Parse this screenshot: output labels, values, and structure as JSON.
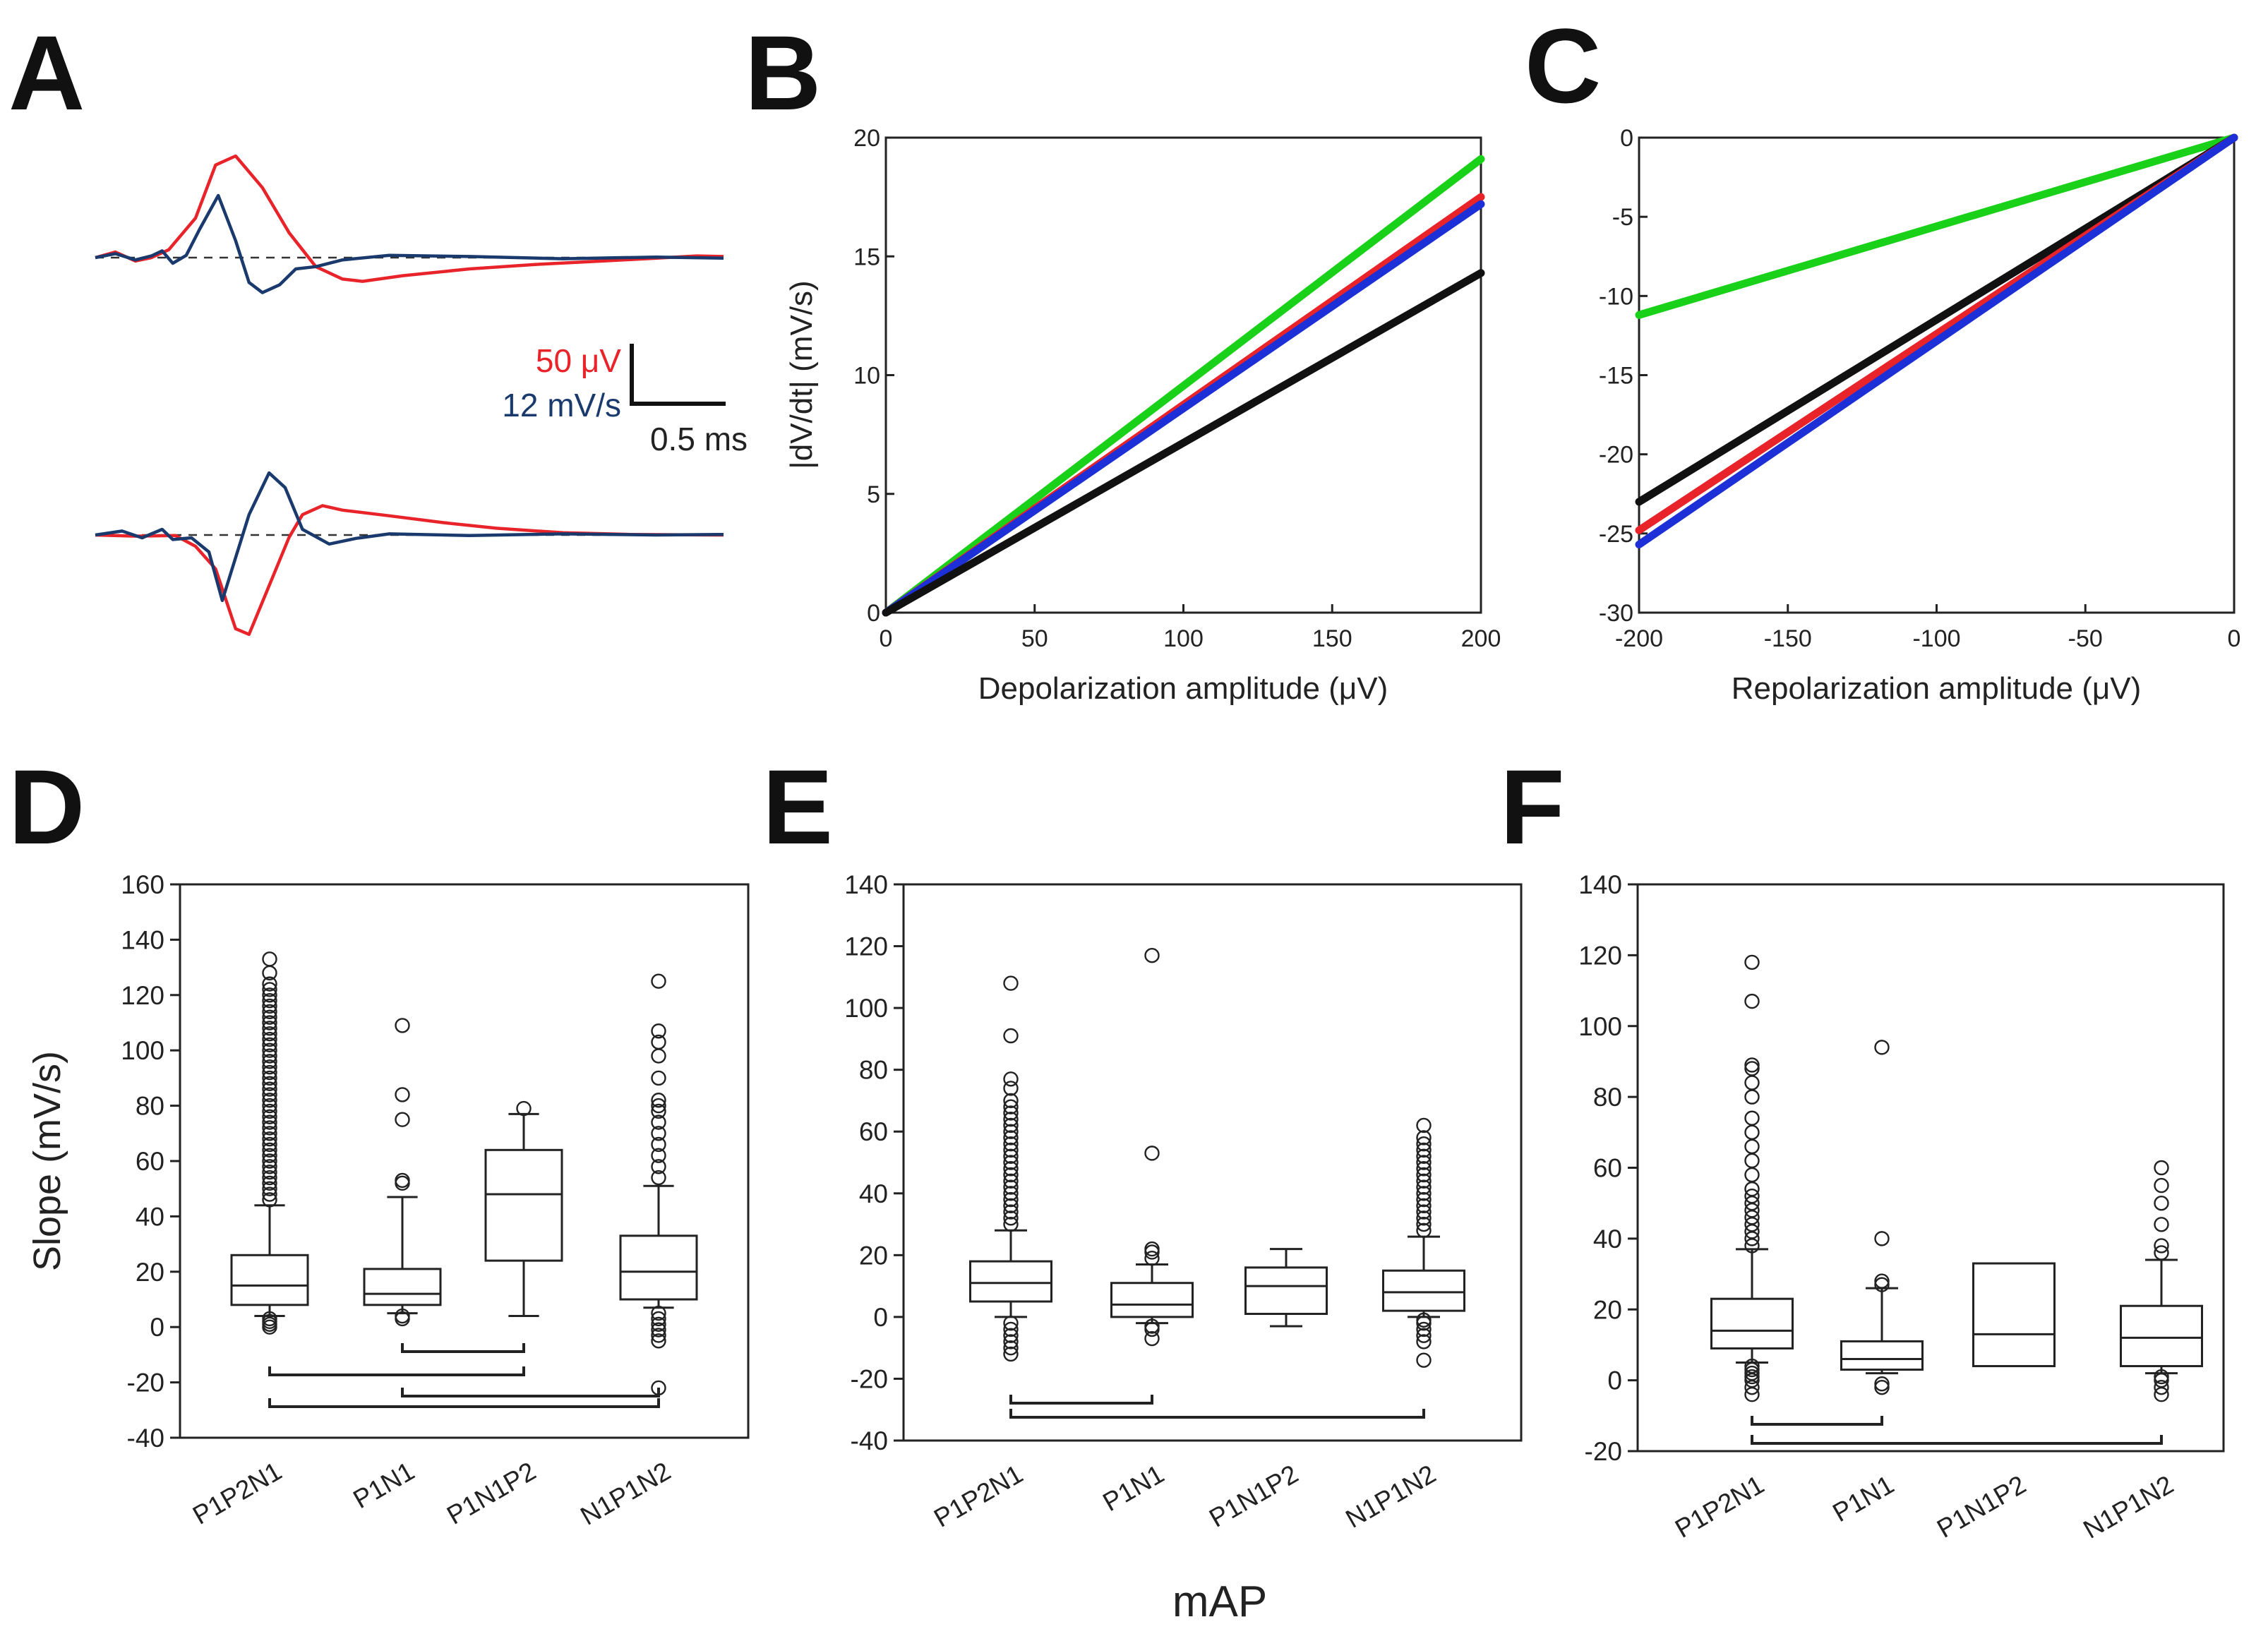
{
  "panel_labels": {
    "A": "A",
    "B": "B",
    "C": "C",
    "D": "D",
    "E": "E",
    "F": "F"
  },
  "colors": {
    "red": "#e8232a",
    "blue": "#1a3a6e",
    "green": "#19d119",
    "line_blue": "#1d2fd6",
    "black": "#111111"
  },
  "scale_bar": {
    "amp_label": "50 μV",
    "slope_label": "12 mV/s",
    "time_label": "0.5 ms"
  },
  "common_x_label": "mAP",
  "chart_data": [
    {
      "panel": "A",
      "type": "line",
      "title": "",
      "traces": [
        {
          "name": "amplitude (top)",
          "color": "red",
          "points": [
            [
              0,
              0
            ],
            [
              0.15,
              0.5
            ],
            [
              0.3,
              -0.3
            ],
            [
              0.42,
              0
            ],
            [
              0.55,
              0.7
            ],
            [
              0.75,
              3.5
            ],
            [
              0.9,
              8.2
            ],
            [
              1.05,
              9.0
            ],
            [
              1.25,
              6.2
            ],
            [
              1.45,
              2.2
            ],
            [
              1.65,
              -0.8
            ],
            [
              1.85,
              -1.9
            ],
            [
              2.0,
              -2.1
            ],
            [
              2.3,
              -1.6
            ],
            [
              2.8,
              -1.0
            ],
            [
              3.3,
              -0.6
            ],
            [
              3.8,
              -0.3
            ],
            [
              4.2,
              -0.05
            ],
            [
              4.5,
              0.15
            ],
            [
              4.7,
              0.1
            ]
          ]
        },
        {
          "name": "slope (top)",
          "color": "blue",
          "points": [
            [
              0,
              0
            ],
            [
              0.15,
              0.35
            ],
            [
              0.3,
              -0.2
            ],
            [
              0.42,
              0.15
            ],
            [
              0.5,
              0.6
            ],
            [
              0.58,
              -0.5
            ],
            [
              0.68,
              0.2
            ],
            [
              0.78,
              2.5
            ],
            [
              0.92,
              5.5
            ],
            [
              1.05,
              1.5
            ],
            [
              1.15,
              -2.2
            ],
            [
              1.25,
              -3.1
            ],
            [
              1.38,
              -2.4
            ],
            [
              1.5,
              -1.0
            ],
            [
              1.65,
              -0.8
            ],
            [
              1.85,
              -0.2
            ],
            [
              2.2,
              0.2
            ],
            [
              2.8,
              0.1
            ],
            [
              3.5,
              -0.1
            ],
            [
              4.2,
              0.05
            ],
            [
              4.7,
              -0.05
            ]
          ]
        },
        {
          "name": "amplitude (bottom)",
          "color": "red",
          "points": [
            [
              0,
              0
            ],
            [
              0.3,
              -0.1
            ],
            [
              0.6,
              -0.05
            ],
            [
              0.75,
              -1.0
            ],
            [
              0.9,
              -3.0
            ],
            [
              1.05,
              -8.3
            ],
            [
              1.15,
              -8.8
            ],
            [
              1.3,
              -4.5
            ],
            [
              1.45,
              -0.2
            ],
            [
              1.55,
              1.8
            ],
            [
              1.7,
              2.6
            ],
            [
              1.85,
              2.2
            ],
            [
              2.2,
              1.7
            ],
            [
              2.6,
              1.1
            ],
            [
              3.0,
              0.6
            ],
            [
              3.5,
              0.2
            ],
            [
              4.0,
              0.05
            ],
            [
              4.7,
              0.0
            ]
          ]
        },
        {
          "name": "slope (bottom)",
          "color": "blue",
          "points": [
            [
              0,
              0
            ],
            [
              0.2,
              0.35
            ],
            [
              0.35,
              -0.25
            ],
            [
              0.5,
              0.5
            ],
            [
              0.58,
              -0.4
            ],
            [
              0.72,
              -0.25
            ],
            [
              0.85,
              -1.5
            ],
            [
              0.95,
              -5.8
            ],
            [
              1.05,
              -2.0
            ],
            [
              1.15,
              1.8
            ],
            [
              1.3,
              5.5
            ],
            [
              1.42,
              4.2
            ],
            [
              1.55,
              0.5
            ],
            [
              1.75,
              -0.8
            ],
            [
              1.95,
              -0.3
            ],
            [
              2.2,
              0.1
            ],
            [
              2.8,
              -0.05
            ],
            [
              3.5,
              0.1
            ],
            [
              4.2,
              0.0
            ],
            [
              4.7,
              0.05
            ]
          ]
        }
      ]
    },
    {
      "panel": "B",
      "type": "line",
      "xlabel": "Depolarization amplitude (μV)",
      "ylabel": "|dV/dt| (mV/s)",
      "xlim": [
        0,
        200
      ],
      "ylim": [
        0,
        20
      ],
      "xticks": [
        0,
        50,
        100,
        150,
        200
      ],
      "yticks": [
        0,
        5,
        10,
        15,
        20
      ],
      "series": [
        {
          "name": "green",
          "color": "green",
          "x": [
            0,
            200
          ],
          "y": [
            0,
            19.1
          ]
        },
        {
          "name": "red",
          "color": "red",
          "x": [
            0,
            200
          ],
          "y": [
            0,
            17.5
          ]
        },
        {
          "name": "blue",
          "color": "line_blue",
          "x": [
            0,
            200
          ],
          "y": [
            0,
            17.2
          ]
        },
        {
          "name": "black",
          "color": "black",
          "x": [
            0,
            200
          ],
          "y": [
            0,
            14.3
          ]
        }
      ]
    },
    {
      "panel": "C",
      "type": "line",
      "xlabel": "Repolarization amplitude (μV)",
      "ylabel": "",
      "xlim": [
        -200,
        0
      ],
      "ylim": [
        -30,
        0
      ],
      "xticks": [
        -200,
        -150,
        -100,
        -50,
        0
      ],
      "yticks": [
        0,
        -5,
        -10,
        -15,
        -20,
        -25,
        -30
      ],
      "series": [
        {
          "name": "green",
          "color": "green",
          "x": [
            -200,
            0
          ],
          "y": [
            -11.2,
            0
          ]
        },
        {
          "name": "black",
          "color": "black",
          "x": [
            -200,
            0
          ],
          "y": [
            -23.0,
            0
          ]
        },
        {
          "name": "red",
          "color": "red",
          "x": [
            -200,
            0
          ],
          "y": [
            -24.8,
            0
          ]
        },
        {
          "name": "blue",
          "color": "line_blue",
          "x": [
            -200,
            0
          ],
          "y": [
            -25.7,
            0
          ]
        }
      ]
    },
    {
      "panel": "D",
      "type": "box",
      "ylabel": "Slope (mV/s)",
      "ylim": [
        -40,
        160
      ],
      "yticks": [
        -40,
        -20,
        0,
        20,
        40,
        60,
        80,
        100,
        120,
        140,
        160
      ],
      "categories": [
        "P1P2N1",
        "P1N1",
        "P1N1P2",
        "N1P1N2"
      ],
      "boxes": [
        {
          "whislo": 4,
          "q1": 8,
          "med": 15,
          "q3": 26,
          "whishi": 44,
          "fliers": [
            0,
            1,
            2,
            3,
            46,
            48,
            50,
            52,
            54,
            56,
            58,
            60,
            62,
            64,
            66,
            68,
            70,
            72,
            74,
            76,
            78,
            80,
            82,
            84,
            86,
            88,
            90,
            92,
            94,
            96,
            98,
            100,
            102,
            104,
            106,
            108,
            110,
            112,
            114,
            116,
            118,
            120,
            122,
            124,
            128,
            133
          ]
        },
        {
          "whislo": 5,
          "q1": 8,
          "med": 12,
          "q3": 21,
          "whishi": 47,
          "fliers": [
            3,
            4,
            52,
            53,
            75,
            84,
            109
          ]
        },
        {
          "whislo": 4,
          "q1": 24,
          "med": 48,
          "q3": 64,
          "whishi": 77,
          "fliers": [
            79
          ]
        },
        {
          "whislo": 7,
          "q1": 10,
          "med": 20,
          "q3": 33,
          "whishi": 51,
          "fliers": [
            -22,
            -5,
            -3,
            -1,
            1,
            3,
            5,
            54,
            58,
            62,
            66,
            70,
            74,
            78,
            80,
            82,
            90,
            98,
            103,
            107,
            125
          ]
        }
      ],
      "brackets": [
        [
          1,
          2
        ],
        [
          0,
          2
        ],
        [
          1,
          3
        ],
        [
          0,
          3
        ]
      ]
    },
    {
      "panel": "E",
      "type": "box",
      "ylabel": "",
      "ylim": [
        -40,
        140
      ],
      "yticks": [
        -40,
        -20,
        0,
        20,
        40,
        60,
        80,
        100,
        120,
        140
      ],
      "categories": [
        "P1P2N1",
        "P1N1",
        "P1N1P2",
        "N1P1N2"
      ],
      "boxes": [
        {
          "whislo": 0,
          "q1": 5,
          "med": 11,
          "q3": 18,
          "whishi": 28,
          "fliers": [
            -12,
            -10,
            -8,
            -6,
            -4,
            -2,
            30,
            32,
            34,
            36,
            38,
            40,
            42,
            44,
            46,
            48,
            50,
            52,
            54,
            56,
            58,
            60,
            62,
            64,
            66,
            68,
            70,
            74,
            77,
            91,
            108
          ]
        },
        {
          "whislo": -2,
          "q1": 0,
          "med": 4,
          "q3": 11,
          "whishi": 17,
          "fliers": [
            -7,
            -4,
            -3,
            19,
            21,
            22,
            53,
            117
          ]
        },
        {
          "whislo": -3,
          "q1": 1,
          "med": 10,
          "q3": 16,
          "whishi": 22,
          "fliers": []
        },
        {
          "whislo": 0,
          "q1": 2,
          "med": 8,
          "q3": 15,
          "whishi": 26,
          "fliers": [
            -14,
            -8,
            -6,
            -4,
            -2,
            -1,
            28,
            30,
            32,
            34,
            36,
            38,
            40,
            42,
            44,
            46,
            48,
            50,
            52,
            54,
            56,
            58,
            62
          ]
        }
      ],
      "brackets": [
        [
          0,
          1
        ],
        [
          0,
          3
        ]
      ]
    },
    {
      "panel": "F",
      "type": "box",
      "ylabel": "",
      "ylim": [
        -20,
        140
      ],
      "yticks": [
        -20,
        0,
        20,
        40,
        60,
        80,
        100,
        120,
        140
      ],
      "categories": [
        "P1P2N1",
        "P1N1",
        "P1N1P2",
        "N1P1N2"
      ],
      "boxes": [
        {
          "whislo": 5,
          "q1": 9,
          "med": 14,
          "q3": 23,
          "whishi": 37,
          "fliers": [
            -4,
            -2,
            0,
            1,
            2,
            3,
            4,
            38,
            40,
            42,
            44,
            46,
            48,
            50,
            52,
            54,
            58,
            62,
            66,
            70,
            74,
            80,
            84,
            88,
            89,
            107,
            118
          ]
        },
        {
          "whislo": 2,
          "q1": 3,
          "med": 6,
          "q3": 11,
          "whishi": 26,
          "fliers": [
            -2,
            -1,
            27,
            28,
            40,
            94
          ]
        },
        {
          "whislo": 4,
          "q1": 4,
          "med": 13,
          "q3": 33,
          "whishi": 33,
          "fliers": []
        },
        {
          "whislo": 2,
          "q1": 4,
          "med": 12,
          "q3": 21,
          "whishi": 34,
          "fliers": [
            -4,
            -2,
            0,
            1,
            36,
            38,
            44,
            50,
            55,
            60
          ]
        }
      ],
      "brackets": [
        [
          0,
          1
        ],
        [
          0,
          3
        ]
      ]
    }
  ]
}
